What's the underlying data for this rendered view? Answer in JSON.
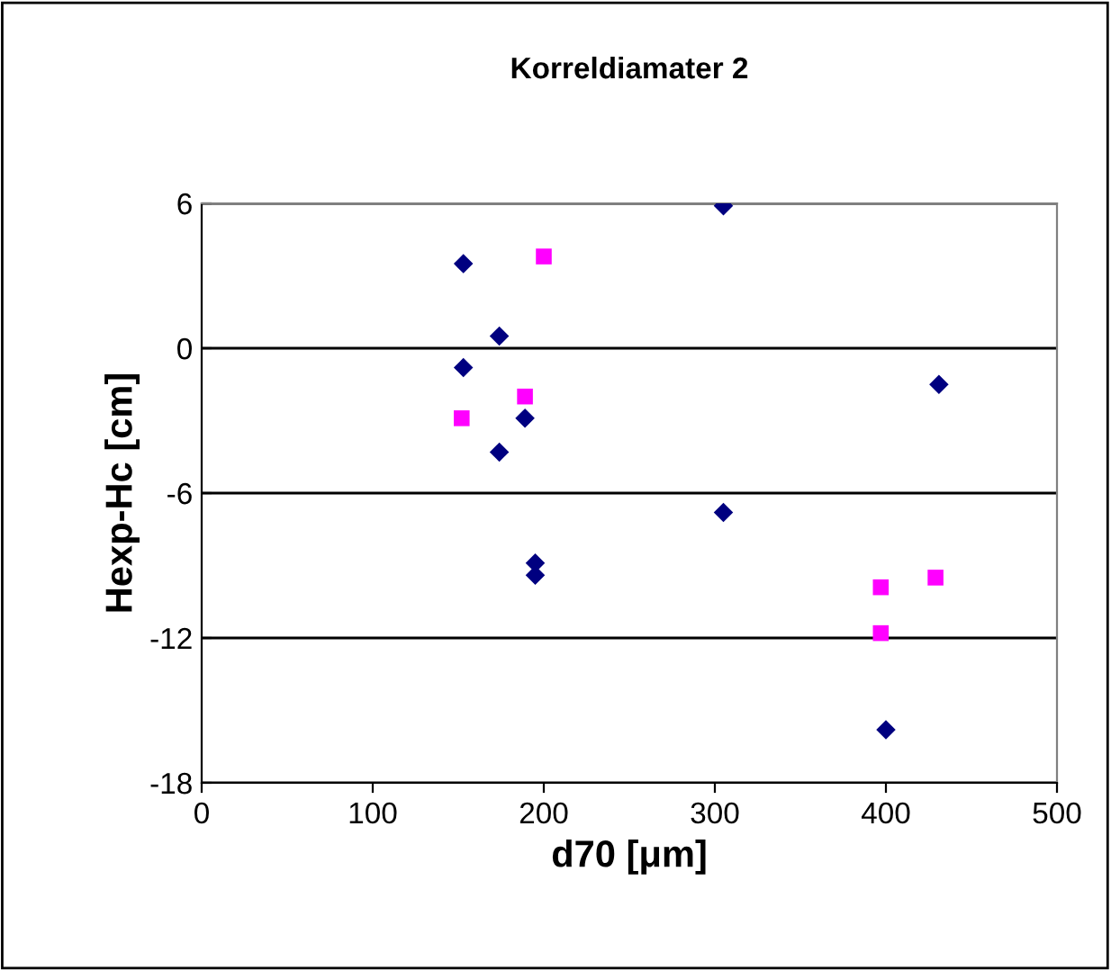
{
  "chart_data": {
    "type": "scatter",
    "title": "Korreldiamater 2",
    "xlabel": "d70 [μm]",
    "ylabel": "Hexp-Hc [cm]",
    "xlim": [
      0,
      500
    ],
    "xticks": [
      0,
      100,
      200,
      300,
      400,
      500
    ],
    "ylim": [
      -18,
      6
    ],
    "yticks": [
      -18,
      -12,
      -6,
      0,
      6
    ],
    "grid": "y",
    "legend": false,
    "series": [
      {
        "color": "#000080",
        "marker": "diamond",
        "x": [
          153,
          153,
          174,
          174,
          189,
          195,
          195,
          305,
          305,
          400,
          431
        ],
        "values": [
          3.5,
          -0.8,
          0.5,
          -4.3,
          -2.9,
          -8.9,
          -9.4,
          5.9,
          -6.8,
          -15.8,
          -1.5
        ]
      },
      {
        "color": "#ff00ff",
        "marker": "square",
        "x": [
          152,
          189,
          200,
          397,
          397,
          429
        ],
        "values": [
          -2.9,
          -2.0,
          3.8,
          -9.9,
          -11.8,
          -9.5
        ]
      }
    ]
  }
}
